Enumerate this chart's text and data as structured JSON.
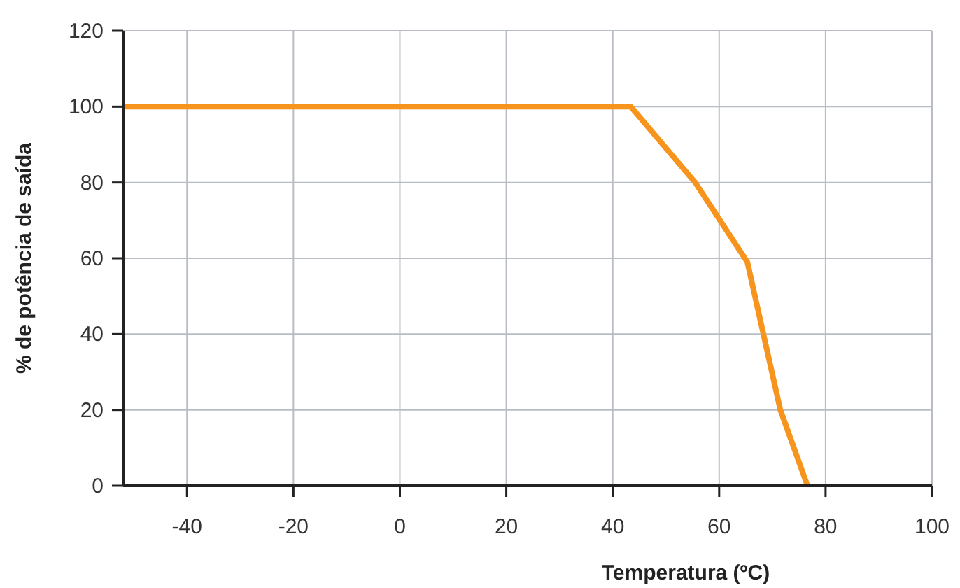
{
  "chart_data": {
    "type": "line",
    "xlabel": "Temperatura (ºC)",
    "ylabel": "% de potência de saída",
    "x": [
      -52,
      43.4,
      55.5,
      65.3,
      71.5,
      76.6
    ],
    "series": [
      {
        "color": "#f7941d",
        "values": [
          100,
          100,
          80,
          59,
          20,
          0
        ]
      }
    ],
    "xlim": [
      -52,
      100
    ],
    "xticks": [
      -40,
      -20,
      0,
      20,
      40,
      60,
      80,
      100
    ],
    "ylim": [
      0,
      120
    ],
    "yticks": [
      0,
      20,
      40,
      60,
      80,
      100,
      120
    ],
    "grid": true,
    "marker": "none",
    "line_style": "solid"
  }
}
